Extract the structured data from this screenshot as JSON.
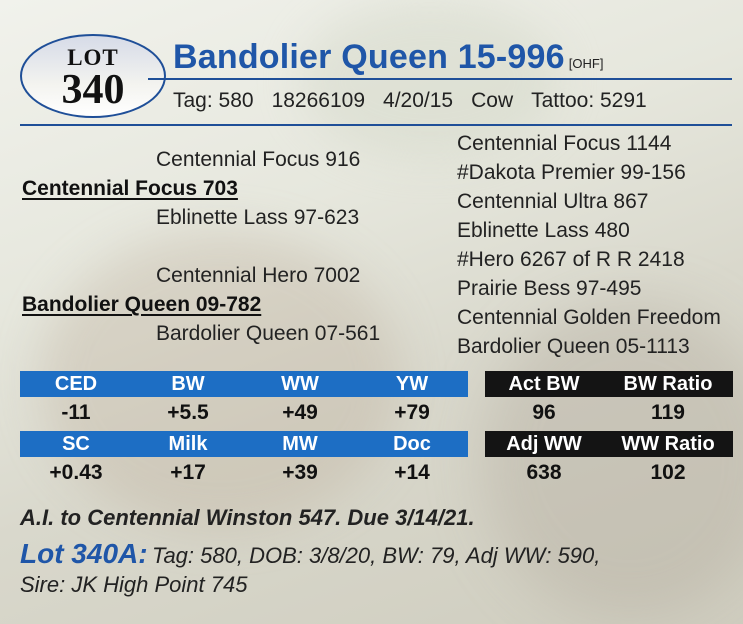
{
  "lot": {
    "word": "LOT",
    "number": "340"
  },
  "animal": {
    "name": "Bandolier Queen 15-996",
    "tag_suffix": "[OHF]",
    "info": {
      "tag": "Tag: 580",
      "reg": "18266109",
      "dob": "4/20/15",
      "sex": "Cow",
      "tattoo": "Tattoo: 5291"
    }
  },
  "pedigree": {
    "sire": "Centennial Focus 703",
    "sire_sire": "Centennial Focus 916",
    "sire_dam": "Eblinette Lass 97-623",
    "dam": "Bandolier Queen 09-782",
    "dam_sire": "Centennial Hero 7002",
    "dam_dam": "Bardolier Queen 07-561",
    "third_gen": [
      "Centennial Focus 1144",
      "#Dakota Premier 99-156",
      "Centennial Ultra 867",
      "Eblinette Lass 480",
      "#Hero 6267 of R R 2418",
      "Prairie Bess 97-495",
      "Centennial Golden Freedom",
      "Bardolier Queen 05-1113"
    ]
  },
  "epds": {
    "row1": {
      "headers": [
        "CED",
        "BW",
        "WW",
        "YW"
      ],
      "values": [
        "-11",
        "+5.5",
        "+49",
        "+79"
      ]
    },
    "row2": {
      "headers": [
        "SC",
        "Milk",
        "MW",
        "Doc"
      ],
      "values": [
        "+0.43",
        "+17",
        "+39",
        "+14"
      ]
    }
  },
  "performance": {
    "row1": {
      "headers": [
        "Act BW",
        "BW Ratio"
      ],
      "values": [
        "96",
        "119"
      ]
    },
    "row2": {
      "headers": [
        "Adj WW",
        "WW Ratio"
      ],
      "values": [
        "638",
        "102"
      ]
    }
  },
  "breeding": {
    "ai_line": "A.I. to Centennial Winston 547. Due 3/14/21."
  },
  "calf": {
    "label": "Lot 340A:",
    "details": "Tag: 580, DOB: 3/8/20, BW: 79, Adj WW: 590,",
    "sire_line": "Sire: JK High Point 745"
  }
}
